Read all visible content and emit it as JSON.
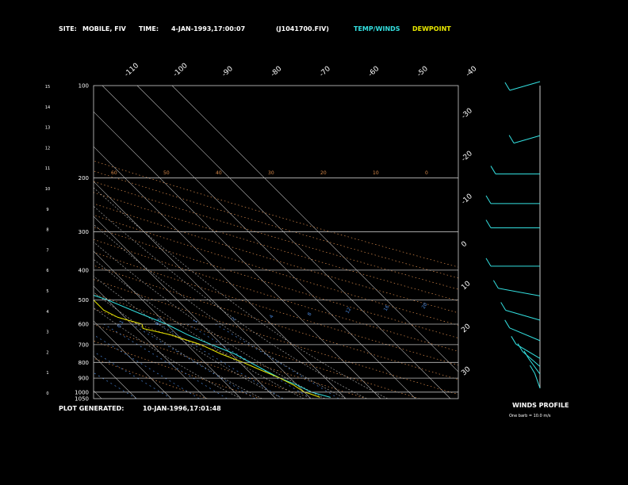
{
  "header": {
    "site_label": "SITE:",
    "site_value": "MOBILE, FIV",
    "time_label": "TIME:",
    "time_value": "4-JAN-1993,17:00:07",
    "file_value": "(J1041700.FIV)",
    "legend_temp": "TEMP/WINDS",
    "legend_dew": "DEWPOINT"
  },
  "footer": {
    "generated_label": "PLOT GENERATED:",
    "generated_value": "10-JAN-1996,17:01:48",
    "winds_title": "WINDS PROFILE",
    "winds_note": "One barb = 10.0 m/s"
  },
  "colors": {
    "temp": "#33e0e0",
    "dew": "#e8e800",
    "isotherm": "#bbbbbb",
    "dry_adiabat": "#d98a4a",
    "moist_adiabat": "#a0a0a0",
    "mixing_ratio": "#4a86d9",
    "text": "#ffffff"
  },
  "chart_data": {
    "type": "line",
    "title": "",
    "ylabel": "",
    "xlabel": "",
    "pressure_ticks": [
      "100",
      "200",
      "300",
      "400",
      "500",
      "600",
      "700",
      "800",
      "900",
      "1000",
      "1050"
    ],
    "pressure_values": [
      100,
      200,
      300,
      400,
      500,
      600,
      700,
      800,
      900,
      1000,
      1050
    ],
    "height_ticks": [
      "0",
      "1",
      "2",
      "3",
      "4",
      "5",
      "6",
      "7",
      "8",
      "9",
      "10",
      "11",
      "12",
      "13",
      "14",
      "15"
    ],
    "temp_tick_labels_top": [
      "-110",
      "-100",
      "-90",
      "-80",
      "-70",
      "-60",
      "-50",
      "-40"
    ],
    "temp_tick_labels_right": [
      "-30",
      "-20",
      "-10",
      "0",
      "10",
      "20",
      "30"
    ],
    "dry_adiabat_labels": [
      "60",
      "50",
      "40",
      "30",
      "20",
      "10",
      "0"
    ],
    "mixing_ratio_labels": [
      "20",
      "16",
      "12",
      "8",
      "4",
      "2",
      "1",
      "0.5",
      "0.1"
    ],
    "ylim": [
      100,
      1050
    ],
    "xlim": [
      -40,
      40
    ],
    "series": [
      {
        "name": "TEMP/WINDS",
        "pressure": [
          1040,
          1010,
          1000,
          950,
          900,
          850,
          800,
          750,
          700,
          650,
          600,
          550,
          500,
          450,
          400,
          350,
          300,
          250,
          200,
          175,
          150,
          125,
          110,
          100
        ],
        "values": [
          16,
          13,
          12,
          10,
          7,
          5,
          3,
          1,
          -3,
          -7,
          -10,
          -15,
          -20,
          -28,
          -33,
          -42,
          -48,
          -56,
          -60,
          -61,
          -63,
          -65,
          -63,
          -60
        ]
      },
      {
        "name": "DEWPOINT",
        "pressure": [
          1040,
          1010,
          1000,
          950,
          900,
          850,
          800,
          750,
          700,
          650,
          620,
          600,
          570,
          540,
          500,
          460,
          430,
          410,
          400,
          380,
          350,
          330,
          320,
          300,
          280,
          250,
          220,
          200,
          175,
          150,
          125,
          110,
          100
        ],
        "values": [
          13,
          11,
          10,
          9,
          7,
          4,
          1,
          -3,
          -6,
          -12,
          -18,
          -17,
          -22,
          -24,
          -24,
          -35,
          -42,
          -38,
          -45,
          -50,
          -50,
          -58,
          -48,
          -62,
          -55,
          -68,
          -70,
          -75,
          -78,
          -80,
          -82,
          -80,
          -72
        ]
      }
    ],
    "winds": [
      {
        "pressure": 100,
        "dir": 300,
        "speed": 20
      },
      {
        "pressure": 150,
        "dir": 300,
        "speed": 10
      },
      {
        "pressure": 200,
        "dir": 270,
        "speed": 40
      },
      {
        "pressure": 250,
        "dir": 270,
        "speed": 50
      },
      {
        "pressure": 300,
        "dir": 270,
        "speed": 50
      },
      {
        "pressure": 400,
        "dir": 270,
        "speed": 50
      },
      {
        "pressure": 500,
        "dir": 250,
        "speed": 40
      },
      {
        "pressure": 600,
        "dir": 240,
        "speed": 30
      },
      {
        "pressure": 700,
        "dir": 230,
        "speed": 30
      },
      {
        "pressure": 800,
        "dir": 220,
        "speed": 25
      },
      {
        "pressure": 850,
        "dir": 210,
        "speed": 20
      },
      {
        "pressure": 900,
        "dir": 200,
        "speed": 15
      },
      {
        "pressure": 1000,
        "dir": 190,
        "speed": 10
      }
    ]
  }
}
